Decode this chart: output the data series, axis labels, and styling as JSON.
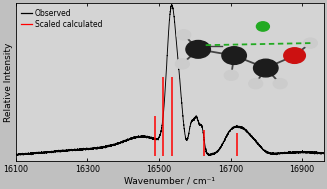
{
  "xmin": 16100,
  "xmax": 16960,
  "xlabel": "Wavenumber / cm⁻¹",
  "ylabel": "Relative Intensity",
  "bg_color": "#c0c0c0",
  "plot_bg_color": "#d4d4d4",
  "legend_observed": "Observed",
  "legend_scaled": "Scaled calculated",
  "red_lines": [
    {
      "x": 16488,
      "ybot": 0.03,
      "ytop": 0.32
    },
    {
      "x": 16510,
      "ybot": 0.03,
      "ytop": 0.6
    },
    {
      "x": 16535,
      "ybot": 0.03,
      "ytop": 0.6
    },
    {
      "x": 16627,
      "ybot": 0.03,
      "ytop": 0.22
    },
    {
      "x": 16718,
      "ybot": 0.03,
      "ytop": 0.2
    }
  ],
  "xticks": [
    16100,
    16300,
    16500,
    16700,
    16900
  ]
}
